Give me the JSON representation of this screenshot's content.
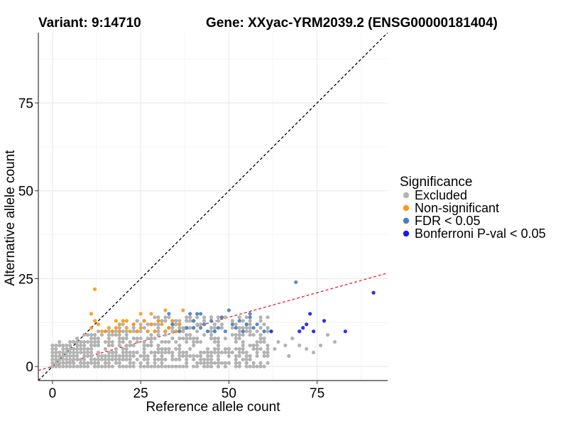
{
  "chart_data": {
    "type": "scatter",
    "title_left": "Variant: 9:14710",
    "title_right": "Gene: XXyac-YRM2039.2 (ENSG00000181404)",
    "xlabel": "Reference allele count",
    "ylabel": "Alternative allele count",
    "xlim": [
      -4,
      95
    ],
    "ylim": [
      -4,
      95
    ],
    "xticks": [
      0,
      25,
      50,
      75
    ],
    "yticks": [
      0,
      25,
      50,
      75
    ],
    "legend": {
      "title": "Significance",
      "position": "right",
      "entries": [
        {
          "label": "Excluded",
          "color": "#b3b3b3"
        },
        {
          "label": "Non-significant",
          "color": "#f59a1c"
        },
        {
          "label": "FDR < 0.05",
          "color": "#4a7fb8"
        },
        {
          "label": "Bonferroni P-val < 0.05",
          "color": "#1a1ae6"
        }
      ]
    },
    "reference_lines": [
      {
        "name": "identity",
        "slope": 1,
        "intercept": 0,
        "color": "#000000",
        "style": "dashed"
      },
      {
        "name": "fit",
        "slope": 0.28,
        "intercept": 0,
        "color": "#e8222a",
        "style": "dashed"
      }
    ],
    "series": [
      {
        "name": "Non-significant",
        "color": "#f59a1c",
        "points": [
          [
            12,
            22
          ],
          [
            11,
            15
          ],
          [
            11,
            11
          ],
          [
            12,
            13
          ],
          [
            13,
            12
          ],
          [
            14,
            10
          ],
          [
            15,
            10
          ],
          [
            16,
            11
          ],
          [
            17,
            10
          ],
          [
            18,
            11
          ],
          [
            19,
            10
          ],
          [
            19,
            12
          ],
          [
            20,
            13
          ],
          [
            21,
            11
          ],
          [
            22,
            10
          ],
          [
            23,
            12
          ],
          [
            24,
            10
          ],
          [
            25,
            11
          ],
          [
            25,
            15
          ],
          [
            26,
            13
          ],
          [
            27,
            10
          ],
          [
            28,
            12
          ],
          [
            29,
            10
          ],
          [
            30,
            13
          ],
          [
            31,
            12
          ],
          [
            32,
            10
          ],
          [
            32,
            16
          ],
          [
            33,
            11
          ],
          [
            34,
            13
          ],
          [
            35,
            10
          ],
          [
            36,
            12
          ],
          [
            37,
            16
          ],
          [
            21,
            13
          ],
          [
            28,
            15
          ],
          [
            18,
            13
          ]
        ]
      },
      {
        "name": "FDR < 0.05",
        "color": "#4a7fb8",
        "points": [
          [
            69,
            24
          ],
          [
            33,
            15
          ],
          [
            34,
            12
          ],
          [
            36,
            10
          ],
          [
            38,
            11
          ],
          [
            39,
            15
          ],
          [
            40,
            11
          ],
          [
            40,
            13
          ],
          [
            41,
            15
          ],
          [
            42,
            11
          ],
          [
            42,
            15
          ],
          [
            43,
            12
          ],
          [
            44,
            10
          ],
          [
            45,
            13
          ],
          [
            46,
            10
          ],
          [
            47,
            11
          ],
          [
            48,
            14
          ],
          [
            49,
            10
          ],
          [
            50,
            16
          ],
          [
            51,
            12
          ],
          [
            52,
            11
          ],
          [
            53,
            13
          ],
          [
            54,
            10
          ],
          [
            55,
            12
          ],
          [
            56,
            14
          ],
          [
            56,
            15
          ],
          [
            57,
            11
          ],
          [
            58,
            12
          ],
          [
            60,
            10
          ]
        ]
      },
      {
        "name": "Bonferroni P-val < 0.05",
        "color": "#1a1ae6",
        "points": [
          [
            91,
            21
          ],
          [
            73,
            15
          ],
          [
            77,
            13
          ],
          [
            62,
            10
          ],
          [
            70,
            10
          ],
          [
            71,
            11
          ],
          [
            72,
            12
          ],
          [
            74,
            10
          ],
          [
            83,
            10
          ]
        ]
      }
    ]
  }
}
